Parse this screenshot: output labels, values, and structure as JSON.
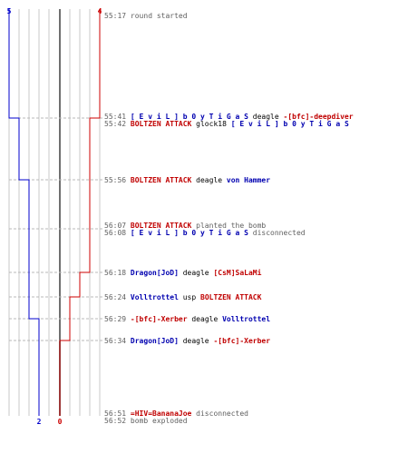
{
  "teams": {
    "blue": {
      "color": "#0000cc",
      "start_count": "5",
      "end_count": "2"
    },
    "red": {
      "color": "#cc0000",
      "start_count": "4",
      "end_count": "0"
    }
  },
  "events": [
    {
      "time": "55:17",
      "parts": [
        {
          "text": "round started",
          "role": "plain"
        }
      ]
    },
    {
      "time": "55:41",
      "parts": [
        {
          "text": "[ E v i L ] b 0 y T i G a S",
          "role": "blue"
        },
        {
          "text": " deagle ",
          "role": "weap"
        },
        {
          "text": "-[bfc]-deepdiver",
          "role": "red"
        }
      ]
    },
    {
      "time": "55:42",
      "parts": [
        {
          "text": "BOLTZEN ATTACK",
          "role": "red"
        },
        {
          "text": " glock18 ",
          "role": "weap"
        },
        {
          "text": "[ E v i L ] b 0 y T i G a S",
          "role": "blue"
        }
      ]
    },
    {
      "time": "55:56",
      "parts": [
        {
          "text": "BOLTZEN ATTACK",
          "role": "red"
        },
        {
          "text": " deagle ",
          "role": "weap"
        },
        {
          "text": "von Hammer",
          "role": "blue"
        }
      ]
    },
    {
      "time": "56:07",
      "parts": [
        {
          "text": "BOLTZEN ATTACK",
          "role": "red"
        },
        {
          "text": " planted the bomb",
          "role": "plain"
        }
      ]
    },
    {
      "time": "56:08",
      "parts": [
        {
          "text": "[ E v i L ] b 0 y T i G a S",
          "role": "blue"
        },
        {
          "text": " disconnected",
          "role": "plain"
        }
      ]
    },
    {
      "time": "56:18",
      "parts": [
        {
          "text": "Dragon[JoD]",
          "role": "blue"
        },
        {
          "text": " deagle ",
          "role": "weap"
        },
        {
          "text": "[CsM]SaLaMi",
          "role": "red"
        }
      ]
    },
    {
      "time": "56:24",
      "parts": [
        {
          "text": "Volltrottel",
          "role": "blue"
        },
        {
          "text": " usp ",
          "role": "weap"
        },
        {
          "text": "BOLTZEN ATTACK",
          "role": "red"
        }
      ]
    },
    {
      "time": "56:29",
      "parts": [
        {
          "text": "-[bfc]-Xerber",
          "role": "red"
        },
        {
          "text": " deagle ",
          "role": "weap"
        },
        {
          "text": "Volltrottel",
          "role": "blue"
        }
      ]
    },
    {
      "time": "56:34",
      "parts": [
        {
          "text": "Dragon[JoD]",
          "role": "blue"
        },
        {
          "text": " deagle ",
          "role": "weap"
        },
        {
          "text": "-[bfc]-Xerber",
          "role": "red"
        }
      ]
    },
    {
      "time": "56:51",
      "parts": [
        {
          "text": "=HIV=BananaJoe",
          "role": "red"
        },
        {
          "text": " disconnected",
          "role": "plain"
        }
      ]
    },
    {
      "time": "56:52",
      "parts": [
        {
          "text": "bomb exploded",
          "role": "plain"
        }
      ]
    }
  ]
}
